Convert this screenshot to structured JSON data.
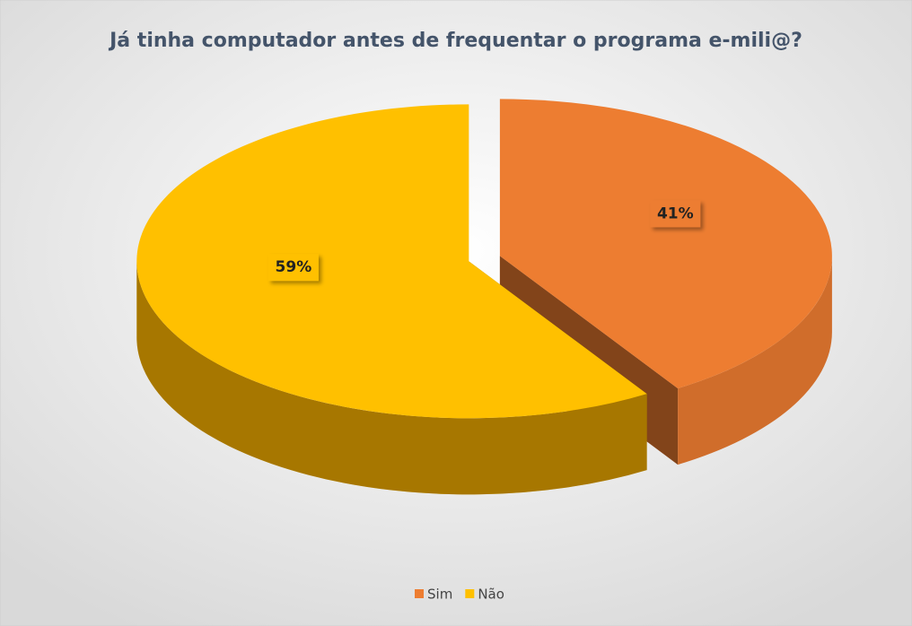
{
  "chart_data": {
    "type": "pie",
    "title": "Já tinha computador antes de frequentar o programa e-mili@?",
    "categories": [
      "Sim",
      "Não"
    ],
    "values": [
      41,
      59
    ],
    "value_labels": [
      "41%",
      "59%"
    ],
    "colors": [
      "#ed7d31",
      "#ffc000"
    ],
    "legend": "bottom"
  }
}
